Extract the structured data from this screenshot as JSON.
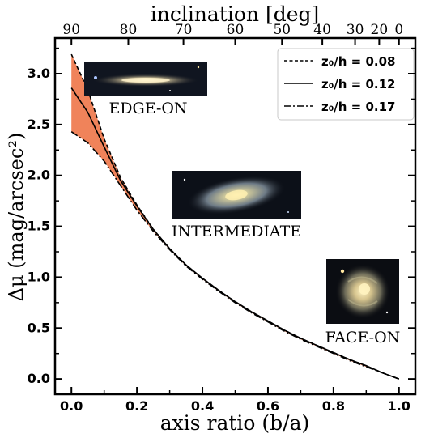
{
  "chart_data": {
    "type": "line",
    "xlabel": "axis ratio (b/a)",
    "ylabel": "Δμ (mag/arcsec²)",
    "top_axis": {
      "label": "inclination [deg]",
      "ticks": [
        "90",
        "80",
        "70",
        "60",
        "50",
        "40",
        "30",
        "20",
        "0"
      ]
    },
    "xlim": [
      -0.05,
      1.05
    ],
    "ylim": [
      -0.15,
      3.35
    ],
    "x_ticks": [
      "0.0",
      "0.2",
      "0.4",
      "0.6",
      "0.8",
      "1.0"
    ],
    "y_ticks": [
      "0.0",
      "0.5",
      "1.0",
      "1.5",
      "2.0",
      "2.5",
      "3.0"
    ],
    "x": [
      0.0,
      0.05,
      0.1,
      0.15,
      0.2,
      0.25,
      0.3,
      0.35,
      0.4,
      0.45,
      0.5,
      0.55,
      0.6,
      0.65,
      0.7,
      0.75,
      0.8,
      0.85,
      0.9,
      0.95,
      1.0
    ],
    "series": [
      {
        "name": "z₀/h = 0.08",
        "style": "dashed",
        "values": [
          3.19,
          2.84,
          2.36,
          1.98,
          1.71,
          1.47,
          1.28,
          1.12,
          0.99,
          0.87,
          0.76,
          0.66,
          0.57,
          0.48,
          0.4,
          0.33,
          0.26,
          0.19,
          0.13,
          0.06,
          0.0
        ]
      },
      {
        "name": "z₀/h = 0.12",
        "style": "solid",
        "values": [
          2.86,
          2.62,
          2.28,
          1.95,
          1.7,
          1.47,
          1.28,
          1.12,
          0.99,
          0.87,
          0.76,
          0.66,
          0.57,
          0.48,
          0.4,
          0.33,
          0.26,
          0.19,
          0.13,
          0.06,
          0.0
        ]
      },
      {
        "name": "z₀/h = 0.17",
        "style": "dashdot",
        "values": [
          2.43,
          2.32,
          2.14,
          1.9,
          1.66,
          1.45,
          1.27,
          1.11,
          0.98,
          0.86,
          0.75,
          0.65,
          0.56,
          0.47,
          0.39,
          0.32,
          0.25,
          0.18,
          0.12,
          0.06,
          0.0
        ]
      }
    ],
    "band_fill": "#f0835a",
    "legend_position": "top-right",
    "annotations": [
      "EDGE-ON",
      "INTERMEDIATE",
      "FACE-ON"
    ]
  }
}
